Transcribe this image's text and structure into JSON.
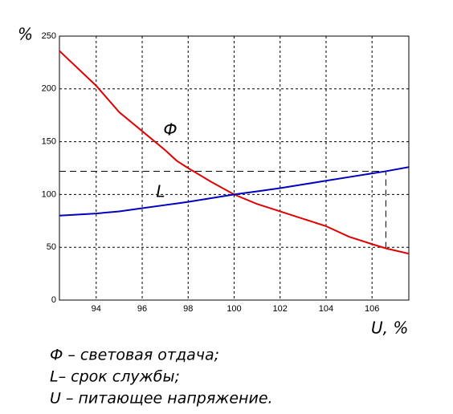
{
  "chart_data": {
    "type": "line",
    "y_label": "%",
    "x_label": "U, %",
    "x": [
      92.4,
      94,
      95,
      96,
      97,
      97.5,
      98,
      99,
      100,
      101,
      102,
      103,
      104,
      105,
      106,
      106.6,
      107.6
    ],
    "series": [
      {
        "name": "Ф",
        "color": "#e00000",
        "values": [
          236,
          203,
          178,
          160,
          142,
          132,
          125,
          112,
          100,
          91,
          84,
          77,
          70,
          60,
          53,
          49,
          44
        ]
      },
      {
        "name": "L",
        "color": "#0000c0",
        "values": [
          80,
          82,
          84,
          87,
          90,
          91.5,
          93,
          96.5,
          100,
          103,
          106,
          109.5,
          113,
          116.5,
          120,
          122,
          126
        ]
      }
    ],
    "xlim": [
      92.4,
      107.6
    ],
    "xticks": [
      94,
      96,
      98,
      100,
      102,
      104,
      106
    ],
    "ylim": [
      0,
      250
    ],
    "yticks": [
      0,
      50,
      100,
      150,
      200,
      250
    ],
    "grid": true,
    "guide": {
      "x": 106.6,
      "y": 122,
      "y_low": 49
    },
    "notes": [
      "Ф – световая отдача;",
      "L– срок службы;",
      "U – питающее напряжение."
    ]
  }
}
